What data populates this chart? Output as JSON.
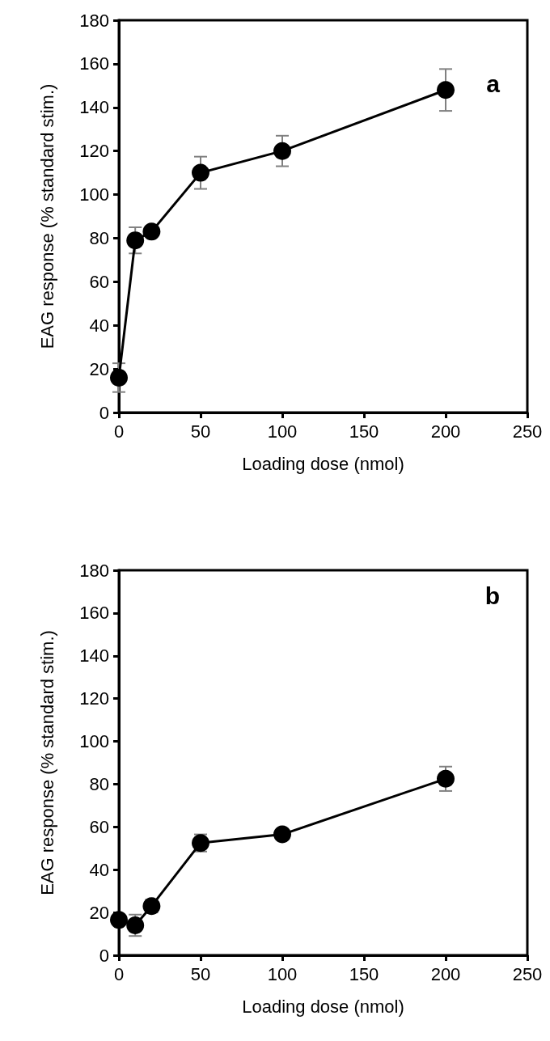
{
  "chart_data": [
    {
      "type": "line",
      "xlabel": "Loading dose (nmol)",
      "ylabel": "EAG response (% standard stim.)",
      "annotations": [
        "a"
      ],
      "x": [
        0,
        10,
        20,
        50,
        100,
        200
      ],
      "series": [
        {
          "color": "#000000",
          "values": [
            16,
            79,
            83,
            110,
            120,
            148
          ],
          "errors": [
            6.6,
            6,
            2,
            7.4,
            7,
            9.6
          ]
        }
      ],
      "xlim": [
        0,
        250
      ],
      "xticks": [
        0,
        50,
        100,
        150,
        200,
        250
      ],
      "ylim": [
        0,
        180
      ],
      "yticks": [
        0,
        20,
        40,
        60,
        80,
        100,
        120,
        140,
        160,
        180
      ],
      "marker": "circle",
      "line_style": "solid"
    },
    {
      "type": "line",
      "xlabel": "Loading dose (nmol)",
      "ylabel": "EAG response (% standard stim.)",
      "annotations": [
        "b"
      ],
      "x": [
        0,
        10,
        20,
        50,
        100,
        200
      ],
      "series": [
        {
          "color": "#000000",
          "values": [
            16.5,
            14,
            23,
            52.5,
            56.5,
            82.5
          ],
          "errors": [
            2,
            5,
            3,
            4,
            2,
            5.7
          ]
        }
      ],
      "xlim": [
        0,
        250
      ],
      "xticks": [
        0,
        50,
        100,
        150,
        200,
        250
      ],
      "ylim": [
        0,
        180
      ],
      "yticks": [
        0,
        20,
        40,
        60,
        80,
        100,
        120,
        140,
        160,
        180
      ],
      "marker": "circle",
      "line_style": "solid"
    }
  ]
}
